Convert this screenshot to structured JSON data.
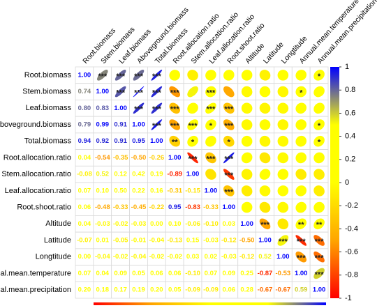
{
  "chart_data": {
    "type": "corrplot",
    "variables": [
      "Root.biomass",
      "Stem.biomass",
      "Leaf.biomass",
      "Aboveground.biomass",
      "Total.biomass",
      "Root.allocation.ratio",
      "Stem.allocation.ratio",
      "Leaf.allocation.ratio",
      "Root.shoot.ratio",
      "Altitude",
      "Latitude",
      "Longtitude",
      "Annual.mean.temperature",
      "Annual.mean.precipitation"
    ],
    "values": [
      [
        1
      ],
      [
        0.74,
        1
      ],
      [
        0.8,
        0.83,
        1
      ],
      [
        0.79,
        0.99,
        0.91,
        1
      ],
      [
        0.94,
        0.92,
        0.91,
        0.95,
        1
      ],
      [
        0.04,
        -0.54,
        -0.35,
        -0.5,
        -0.26,
        1
      ],
      [
        -0.08,
        0.52,
        0.12,
        0.42,
        0.19,
        -0.89,
        1
      ],
      [
        0.07,
        0.1,
        0.5,
        0.22,
        0.16,
        -0.31,
        -0.15,
        1
      ],
      [
        0.06,
        -0.48,
        -0.33,
        -0.45,
        -0.22,
        0.95,
        -0.83,
        -0.33,
        1
      ],
      [
        0.04,
        -0.03,
        -0.02,
        -0.03,
        0,
        0.1,
        -0.06,
        -0.1,
        0.03,
        1
      ],
      [
        -0.07,
        0.01,
        -0.05,
        -0.01,
        -0.04,
        -0.13,
        0.15,
        -0.03,
        -0.12,
        -0.5,
        1
      ],
      [
        0,
        -0.04,
        -0.02,
        -0.04,
        -0.02,
        -0.02,
        0.03,
        0.02,
        -0.03,
        -0.12,
        0.52,
        1
      ],
      [
        0.07,
        0.04,
        0.09,
        0.05,
        0.06,
        0.06,
        -0.1,
        0.07,
        0.09,
        0.25,
        -0.87,
        -0.53,
        1
      ],
      [
        0.2,
        0.18,
        0.17,
        0.19,
        0.2,
        0.05,
        -0.09,
        -0.09,
        0.06,
        0.28,
        -0.67,
        -0.67,
        0.59,
        1
      ]
    ],
    "value_labels": [
      [
        "1.00"
      ],
      [
        "0.74",
        "1.00"
      ],
      [
        "0.80",
        "0.83",
        "1.00"
      ],
      [
        "0.79",
        "0.99",
        "0.91",
        "1.00"
      ],
      [
        "0.94",
        "0.92",
        "0.91",
        "0.95",
        "1.00"
      ],
      [
        "0.04",
        "-0.54",
        "-0.35",
        "-0.50",
        "-0.26",
        "1.00"
      ],
      [
        "-0.08",
        "0.52",
        "0.12",
        "0.42",
        "0.19",
        "-0.89",
        "1.00"
      ],
      [
        "0.07",
        "0.10",
        "0.50",
        "0.22",
        "0.16",
        "-0.31",
        "-0.15",
        "1.00"
      ],
      [
        "0.06",
        "-0.48",
        "-0.33",
        "-0.45",
        "-0.22",
        "0.95",
        "-0.83",
        "-0.33",
        "1.00"
      ],
      [
        "0.04",
        "-0.03",
        "-0.02",
        "-0.03",
        "0.00",
        "0.10",
        "-0.06",
        "-0.10",
        "0.03",
        "1.00"
      ],
      [
        "-0.07",
        "0.01",
        "-0.05",
        "-0.01",
        "-0.04",
        "-0.13",
        "0.15",
        "-0.03",
        "-0.12",
        "-0.50",
        "1.00"
      ],
      [
        "0.00",
        "-0.04",
        "-0.02",
        "-0.04",
        "-0.02",
        "-0.02",
        "0.03",
        "0.02",
        "-0.03",
        "-0.12",
        "0.52",
        "1.00"
      ],
      [
        "0.07",
        "0.04",
        "0.09",
        "0.05",
        "0.06",
        "0.06",
        "-0.10",
        "0.07",
        "0.09",
        "0.25",
        "-0.87",
        "-0.53",
        "1.00"
      ],
      [
        "0.20",
        "0.18",
        "0.17",
        "0.19",
        "0.20",
        "0.05",
        "-0.09",
        "-0.09",
        "0.06",
        "0.28",
        "-0.67",
        "-0.67",
        "0.59",
        "1.00"
      ]
    ],
    "significance": [
      [
        "***",
        "***",
        "***",
        "***",
        null,
        null,
        null,
        null,
        null,
        null,
        null,
        null,
        "*"
      ],
      [
        "***",
        "***",
        "***",
        "***",
        null,
        "***",
        null,
        null,
        null,
        null,
        "*"
      ],
      [
        "***",
        "***",
        "***",
        null,
        "***",
        "***",
        null,
        null,
        null,
        null,
        null
      ],
      [
        "***",
        "***",
        "***",
        "*",
        "***",
        null,
        null,
        null,
        null,
        "*"
      ],
      [
        "**",
        "*",
        null,
        "*",
        null,
        null,
        null,
        null,
        "*"
      ],
      [
        "***",
        "***",
        "***",
        null,
        null,
        null,
        null,
        null
      ],
      [
        null,
        "***",
        null,
        null,
        null,
        null,
        null
      ],
      [
        "***",
        null,
        null,
        null,
        null,
        null
      ],
      [
        null,
        null,
        null,
        null,
        null
      ],
      [
        "***",
        null,
        "**",
        "**"
      ],
      [
        "***",
        "***",
        "***"
      ],
      [
        "***",
        "***"
      ],
      [
        "***"
      ]
    ],
    "colorscale": {
      "values": [
        -1,
        -0.5,
        0,
        0.5,
        1
      ],
      "colors": [
        "#ff0000",
        "#ffa500",
        "#ffff00",
        "#ffff00",
        "#0000ff"
      ]
    },
    "clim": [
      -1,
      1
    ],
    "cticks": [
      1,
      0.8,
      0.6,
      0.4,
      0.2,
      0,
      -0.2,
      -0.4,
      -0.6,
      -0.8,
      -1
    ]
  }
}
